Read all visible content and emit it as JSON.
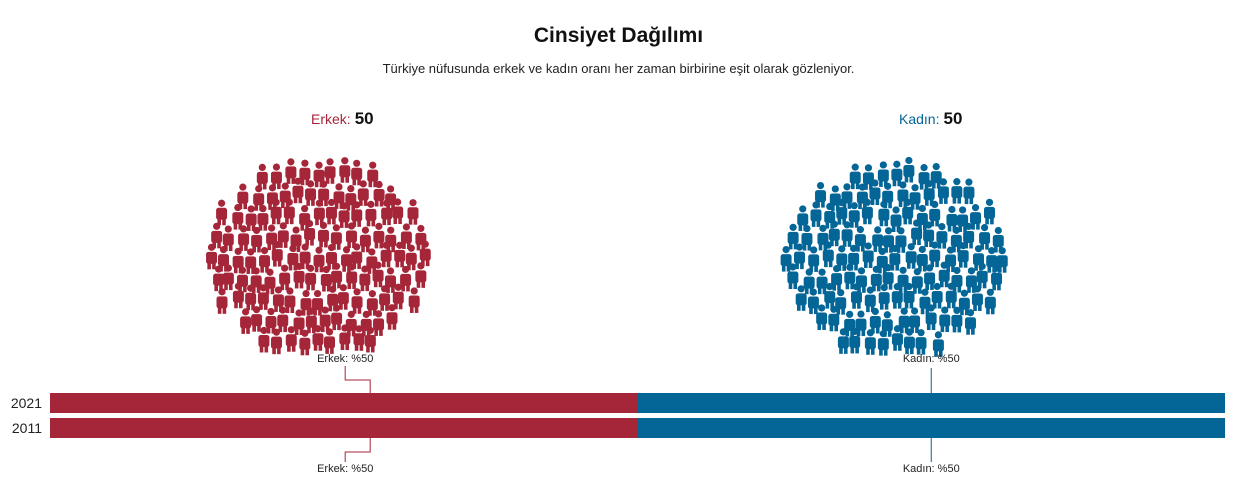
{
  "title": "Cinsiyet Dağılımı",
  "subtitle": "Türkiye nüfusunda erkek ve kadın oranı her zaman birbirine eşit olarak gözleniyor.",
  "counts": {
    "male_label": "Erkek:",
    "male_value": "50",
    "female_label": "Kadın:",
    "female_value": "50"
  },
  "colors": {
    "male": "#a62639",
    "female": "#046597"
  },
  "icon": "person-icon",
  "chart_data": {
    "type": "bar",
    "orientation": "horizontal-stacked-100",
    "categories": [
      "2021",
      "2011"
    ],
    "series": [
      {
        "name": "Erkek",
        "values": [
          50,
          50
        ],
        "color": "#a62639"
      },
      {
        "name": "Kadın",
        "values": [
          50,
          50
        ],
        "color": "#046597"
      }
    ],
    "annotations": {
      "top": [
        "Erkek: %50",
        "Kadın: %50"
      ],
      "bottom": [
        "Erkek: %50",
        "Kadın: %50"
      ]
    },
    "xlim": [
      0,
      100
    ]
  }
}
